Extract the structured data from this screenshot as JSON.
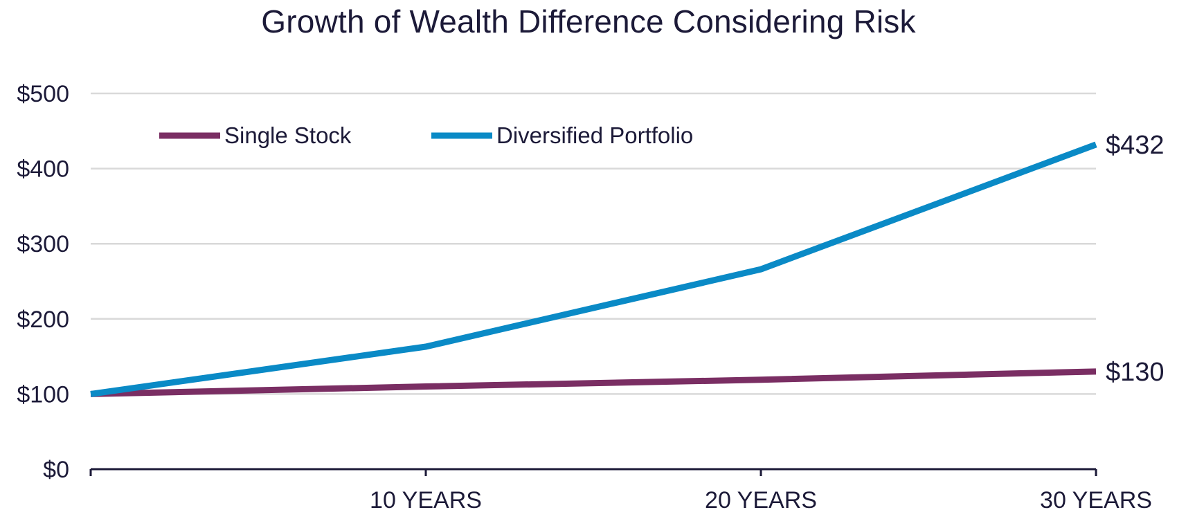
{
  "chart_data": {
    "type": "line",
    "title": "Growth of Wealth Difference Considering Risk",
    "xlabel": "",
    "ylabel": "",
    "x": [
      0,
      10,
      20,
      30
    ],
    "x_tick_labels": [
      "",
      "10 YEARS",
      "20 YEARS",
      "30 YEARS"
    ],
    "y_tick_values": [
      0,
      100,
      200,
      300,
      400,
      500
    ],
    "y_tick_labels": [
      "$0",
      "$100",
      "$200",
      "$300",
      "$400",
      "$500"
    ],
    "ylim": [
      0,
      500
    ],
    "xlim": [
      0,
      30
    ],
    "grid": true,
    "legend_position": "top-left",
    "series": [
      {
        "name": "Single Stock",
        "color": "#7a2e63",
        "values": [
          100,
          110,
          119,
          130
        ],
        "end_label": "$130"
      },
      {
        "name": "Diversified Portfolio",
        "color": "#0a8ac6",
        "values": [
          100,
          163,
          266,
          432
        ],
        "end_label": "$432"
      }
    ]
  }
}
